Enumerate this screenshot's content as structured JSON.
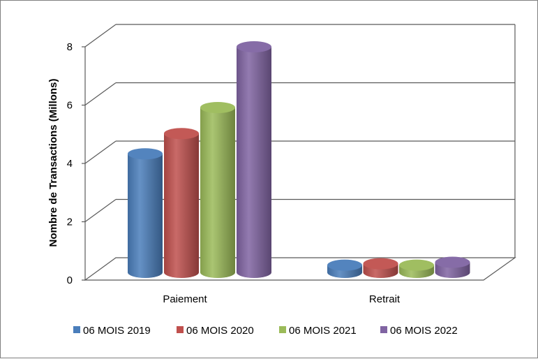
{
  "chart_data": {
    "type": "bar",
    "style": "3d-cylinder",
    "categories": [
      "Paiement",
      "Retrait"
    ],
    "ylabel": "Nombre de Transactions (Millons)",
    "xlabel": "",
    "ylim": [
      0,
      8
    ],
    "yticks": [
      0,
      2,
      4,
      6,
      8
    ],
    "grid": true,
    "legend_position": "bottom",
    "series": [
      {
        "name": "06 MOIS 2019",
        "color": "#4a7ebb",
        "values": [
          4.1,
          0.25
        ]
      },
      {
        "name": "06 MOIS 2020",
        "color": "#c0504d",
        "values": [
          4.8,
          0.3
        ]
      },
      {
        "name": "06 MOIS 2021",
        "color": "#9bbb59",
        "values": [
          5.7,
          0.25
        ]
      },
      {
        "name": "06 MOIS 2022",
        "color": "#8064a2",
        "values": [
          7.8,
          0.35
        ]
      }
    ]
  }
}
